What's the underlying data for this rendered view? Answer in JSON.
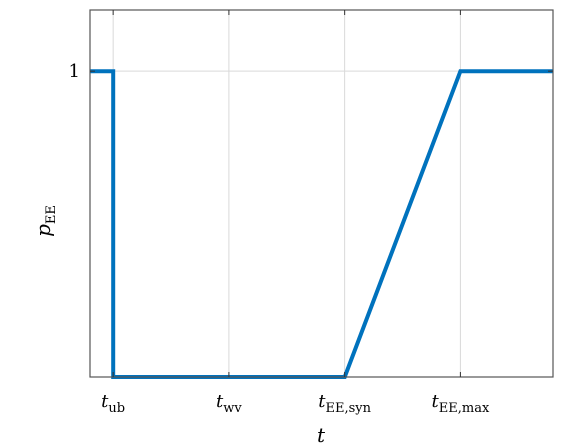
{
  "chart_data": {
    "type": "line",
    "xlabel": "t",
    "ylabel": {
      "base": "p",
      "sub": "EE"
    },
    "x_ticks": [
      {
        "base": "t",
        "sub": "ub",
        "x": 1
      },
      {
        "base": "t",
        "sub": "wv",
        "x": 6
      },
      {
        "base": "t",
        "sub": "EE,syn",
        "x": 11
      },
      {
        "base": "t",
        "sub": "EE,max",
        "x": 16
      }
    ],
    "y_ticks": [
      {
        "label": "1",
        "y": 1
      }
    ],
    "xlim": [
      0,
      20
    ],
    "ylim": [
      0,
      1.2
    ],
    "grid": true,
    "series": [
      {
        "color": "#0072BD",
        "x": [
          0,
          1,
          1,
          11,
          16,
          20
        ],
        "y": [
          1,
          1,
          0,
          0,
          1,
          1
        ]
      }
    ]
  }
}
